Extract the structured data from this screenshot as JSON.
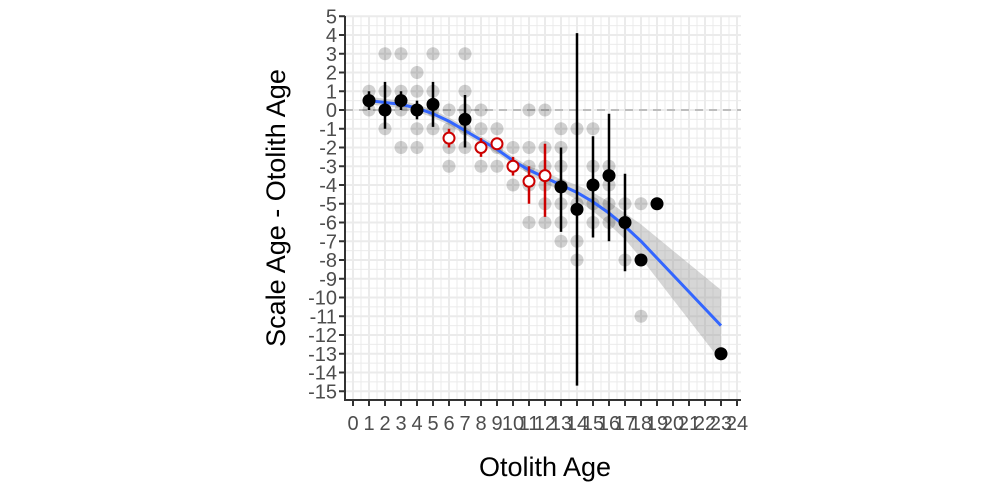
{
  "chart_data": {
    "type": "scatter",
    "title": "",
    "xlabel": "Otolith Age",
    "ylabel": "Scale Age - Otolith Age",
    "xlim": [
      0,
      24
    ],
    "ylim": [
      -15,
      5
    ],
    "x_ticks": [
      0,
      1,
      2,
      3,
      4,
      5,
      6,
      7,
      8,
      9,
      10,
      11,
      12,
      13,
      14,
      15,
      16,
      17,
      18,
      19,
      20,
      21,
      22,
      23,
      24
    ],
    "y_ticks": [
      5,
      4,
      3,
      2,
      1,
      0,
      -1,
      -2,
      -3,
      -4,
      -5,
      -6,
      -7,
      -8,
      -9,
      -10,
      -11,
      -12,
      -13,
      -14,
      -15
    ],
    "grid": true,
    "reference_line": {
      "y": 0,
      "style": "dashed",
      "color": "#bdbdbd"
    },
    "raw_points": {
      "color": "#000000",
      "alpha": 0.18,
      "points": [
        [
          1,
          1
        ],
        [
          1,
          0
        ],
        [
          1,
          0.5
        ],
        [
          2,
          3
        ],
        [
          2,
          1
        ],
        [
          2,
          0
        ],
        [
          2,
          -1
        ],
        [
          3,
          3
        ],
        [
          3,
          1
        ],
        [
          3,
          0
        ],
        [
          3,
          -2
        ],
        [
          4,
          2
        ],
        [
          4,
          1
        ],
        [
          4,
          0
        ],
        [
          4,
          -1
        ],
        [
          4,
          -2
        ],
        [
          5,
          3
        ],
        [
          5,
          1
        ],
        [
          5,
          0
        ],
        [
          5,
          -1
        ],
        [
          6,
          0
        ],
        [
          6,
          -1
        ],
        [
          6,
          -2
        ],
        [
          6,
          -3
        ],
        [
          7,
          3
        ],
        [
          7,
          1
        ],
        [
          7,
          0
        ],
        [
          7,
          -1
        ],
        [
          7,
          -2
        ],
        [
          8,
          0
        ],
        [
          8,
          -1
        ],
        [
          8,
          -2
        ],
        [
          8,
          -3
        ],
        [
          9,
          -1
        ],
        [
          9,
          -2
        ],
        [
          9,
          -3
        ],
        [
          10,
          -2
        ],
        [
          10,
          -3
        ],
        [
          10,
          -4
        ],
        [
          11,
          0
        ],
        [
          11,
          -2
        ],
        [
          11,
          -3
        ],
        [
          11,
          -4
        ],
        [
          11,
          -6
        ],
        [
          12,
          0
        ],
        [
          12,
          -2
        ],
        [
          12,
          -3
        ],
        [
          12,
          -4
        ],
        [
          12,
          -5
        ],
        [
          12,
          -6
        ],
        [
          13,
          -1
        ],
        [
          13,
          -2
        ],
        [
          13,
          -3
        ],
        [
          13,
          -4
        ],
        [
          13,
          -5
        ],
        [
          13,
          -6
        ],
        [
          13,
          -7
        ],
        [
          14,
          -1
        ],
        [
          14,
          -5
        ],
        [
          14,
          -7
        ],
        [
          14,
          -8
        ],
        [
          15,
          -1
        ],
        [
          15,
          -3
        ],
        [
          15,
          -4
        ],
        [
          15,
          -5
        ],
        [
          15,
          -6
        ],
        [
          16,
          -3
        ],
        [
          16,
          -4
        ],
        [
          16,
          -5
        ],
        [
          16,
          -6
        ],
        [
          17,
          -5
        ],
        [
          17,
          -8
        ],
        [
          18,
          -5
        ],
        [
          18,
          -11
        ],
        [
          19,
          -5
        ],
        [
          23,
          -13
        ]
      ]
    },
    "series": [
      {
        "name": "mean difference",
        "points": [
          {
            "x": 1,
            "y": 0.5,
            "lo": 0,
            "hi": 1,
            "significant": false
          },
          {
            "x": 2,
            "y": 0,
            "lo": -1,
            "hi": 1.5,
            "significant": false
          },
          {
            "x": 3,
            "y": 0.5,
            "lo": 0,
            "hi": 1,
            "significant": false
          },
          {
            "x": 4,
            "y": 0,
            "lo": -0.5,
            "hi": 0.5,
            "significant": false
          },
          {
            "x": 5,
            "y": 0.3,
            "lo": -0.9,
            "hi": 1.5,
            "significant": false
          },
          {
            "x": 6,
            "y": -1.5,
            "lo": -2,
            "hi": -1,
            "significant": true
          },
          {
            "x": 7,
            "y": -0.5,
            "lo": -2,
            "hi": 0.8,
            "significant": false
          },
          {
            "x": 8,
            "y": -2,
            "lo": -2.5,
            "hi": -1.5,
            "significant": true
          },
          {
            "x": 9,
            "y": -1.8,
            "lo": -2,
            "hi": -1.5,
            "significant": true
          },
          {
            "x": 10,
            "y": -3,
            "lo": -3.5,
            "hi": -2.5,
            "significant": true
          },
          {
            "x": 11,
            "y": -3.8,
            "lo": -5,
            "hi": -3,
            "significant": true
          },
          {
            "x": 12,
            "y": -3.5,
            "lo": -5.7,
            "hi": -1.8,
            "significant": true
          },
          {
            "x": 13,
            "y": -4.1,
            "lo": -6.5,
            "hi": -2,
            "significant": false
          },
          {
            "x": 14,
            "y": -5.3,
            "lo": -14.7,
            "hi": 4.1,
            "significant": false
          },
          {
            "x": 15,
            "y": -4,
            "lo": -6.8,
            "hi": -1.4,
            "significant": false
          },
          {
            "x": 16,
            "y": -3.5,
            "lo": -7,
            "hi": -0.2,
            "significant": false
          },
          {
            "x": 17,
            "y": -6,
            "lo": -8.6,
            "hi": -3.4,
            "significant": false
          },
          {
            "x": 18,
            "y": -8,
            "lo": null,
            "hi": null,
            "significant": false
          },
          {
            "x": 19,
            "y": -5,
            "lo": null,
            "hi": null,
            "significant": false
          },
          {
            "x": 23,
            "y": -13,
            "lo": null,
            "hi": null,
            "significant": false
          }
        ],
        "colors": {
          "significant": "#cc0000",
          "not_significant": "#000000"
        }
      },
      {
        "name": "loess smooth",
        "color": "#3366ff",
        "points": [
          [
            1,
            0.5
          ],
          [
            2,
            0.4
          ],
          [
            3,
            0.3
          ],
          [
            4,
            0.1
          ],
          [
            5,
            -0.2
          ],
          [
            6,
            -0.6
          ],
          [
            7,
            -1.1
          ],
          [
            8,
            -1.6
          ],
          [
            9,
            -2.1
          ],
          [
            10,
            -2.7
          ],
          [
            11,
            -3.2
          ],
          [
            12,
            -3.6
          ],
          [
            13,
            -4.0
          ],
          [
            14,
            -4.4
          ],
          [
            15,
            -4.9
          ],
          [
            16,
            -5.5
          ],
          [
            17,
            -6.2
          ],
          [
            18,
            -7.0
          ],
          [
            19,
            -7.9
          ],
          [
            20,
            -8.8
          ],
          [
            21,
            -9.7
          ],
          [
            22,
            -10.6
          ],
          [
            23,
            -11.5
          ]
        ],
        "band": {
          "color": "#999999",
          "alpha": 0.4,
          "lower": [
            0.3,
            0.2,
            0.1,
            -0.1,
            -0.4,
            -0.8,
            -1.3,
            -1.8,
            -2.3,
            -2.9,
            -3.4,
            -3.9,
            -4.3,
            -4.8,
            -5.4,
            -6.1,
            -6.9,
            -7.9,
            -9.0,
            -10.1,
            -11.2,
            -12.3,
            -13.4
          ],
          "upper": [
            0.7,
            0.6,
            0.5,
            0.3,
            0.0,
            -0.4,
            -0.9,
            -1.4,
            -1.9,
            -2.5,
            -3.0,
            -3.3,
            -3.7,
            -4.0,
            -4.4,
            -4.9,
            -5.5,
            -6.1,
            -6.8,
            -7.5,
            -8.2,
            -8.9,
            -9.6
          ]
        }
      }
    ]
  }
}
